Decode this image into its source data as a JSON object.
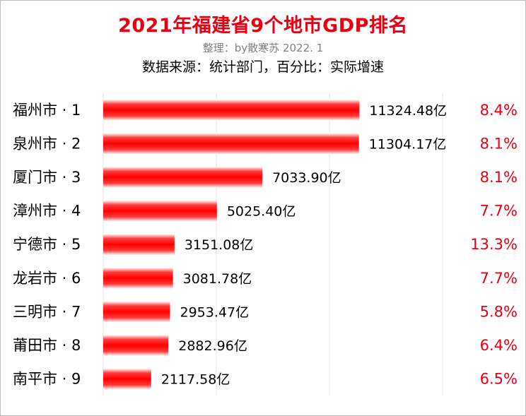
{
  "header": {
    "title": "2021年福建省9个地市GDP排名",
    "subtitle": "整理：by散寒苏  2022. 1",
    "source": "数据来源：统计部门，百分比：实际增速"
  },
  "colors": {
    "bar": "#ff0000",
    "title": "#e60012",
    "growth": "#e60012"
  },
  "chart_data": {
    "type": "bar",
    "orientation": "horizontal",
    "categories": [
      "福州市 · 1",
      "泉州市 · 2",
      "厦门市 · 3",
      "漳州市 · 4",
      "宁德市 · 5",
      "龙岩市 · 6",
      "三明市 · 7",
      "莆田市 · 8",
      "南平市 · 9"
    ],
    "values": [
      11324.48,
      11304.17,
      7033.9,
      5025.4,
      3151.08,
      3081.78,
      2953.47,
      2882.96,
      2117.58
    ],
    "value_labels": [
      "11324.48亿",
      "11304.17亿",
      "7033.90亿",
      "5025.40亿",
      "3151.08亿",
      "3081.78亿",
      "2953.47亿",
      "2882.96亿",
      "2117.58亿"
    ],
    "growth_labels": [
      "8.4%",
      "8.1%",
      "8.1%",
      "7.7%",
      "13.3%",
      "7.7%",
      "5.8%",
      "6.4%",
      "6.5%"
    ],
    "xlim": [
      0,
      15000
    ],
    "grid": true
  }
}
